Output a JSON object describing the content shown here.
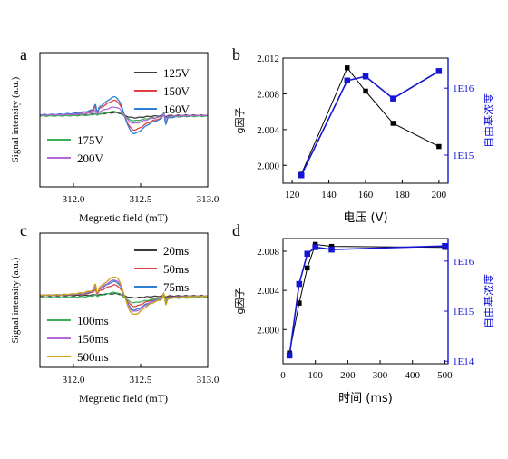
{
  "chart_data": [
    {
      "panel": "a",
      "type": "line",
      "xlabel": "Megnetic field (mT)",
      "ylabel": "Signal intensity (a.u.)",
      "xlim": [
        311.75,
        313.0
      ],
      "xticks": [
        "312.0",
        "312.5",
        "313.0"
      ],
      "xtick_values": [
        312.0,
        312.5,
        313.0
      ],
      "legend_top": [
        "125V",
        "150V",
        "160V"
      ],
      "legend_bottom": [
        "175V",
        "200V"
      ],
      "series": [
        {
          "name": "125V",
          "color": "#3a3a3a",
          "amp": 0.5,
          "base": 127
        },
        {
          "name": "150V",
          "color": "#e0403f",
          "amp": 2.9,
          "base": 127
        },
        {
          "name": "160V",
          "color": "#2f7ed8",
          "amp": 3.6,
          "base": 127
        },
        {
          "name": "175V",
          "color": "#3cae5a",
          "amp": 0.9,
          "base": 128
        },
        {
          "name": "200V",
          "color": "#b26ad6",
          "amp": 1.6,
          "base": 127
        }
      ]
    },
    {
      "panel": "b",
      "type": "line",
      "xlabel": "电压 (V)",
      "ylabel_left": "g因子",
      "ylabel_right": "自由基浓度",
      "xlim": [
        115,
        205
      ],
      "xticks": [
        "120",
        "140",
        "160",
        "180",
        "200"
      ],
      "xtick_values": [
        120,
        140,
        160,
        180,
        200
      ],
      "ylim_left": [
        1.998,
        2.012
      ],
      "yticks_left": [
        "2.000",
        "2.004",
        "2.008",
        "2.012"
      ],
      "ytick_values_left": [
        2.0,
        2.004,
        2.008,
        2.012
      ],
      "y_right_scale": "log",
      "yticks_right": [
        "1E15",
        "1E16"
      ],
      "ytick_values_right": [
        1000000000000000.0,
        1e+16
      ],
      "series": [
        {
          "name": "g因子",
          "axis": "left",
          "color": "#000000",
          "x": [
            125,
            150,
            160,
            175,
            200
          ],
          "y": [
            1.999,
            2.0109,
            2.0083,
            2.0047,
            2.0021
          ]
        },
        {
          "name": "自由基浓度",
          "axis": "right",
          "color": "#1515d6",
          "x": [
            125,
            150,
            160,
            175,
            200
          ],
          "y": [
            500000000000000.0,
            1.3e+16,
            1.5e+16,
            7000000000000000.0,
            1.8e+16
          ]
        }
      ]
    },
    {
      "panel": "c",
      "type": "line",
      "xlabel": "Megnetic field (mT)",
      "ylabel": "Signal intensity (a.u.)",
      "xlim": [
        311.75,
        313.0
      ],
      "xticks": [
        "312.0",
        "312.5",
        "313.0"
      ],
      "xtick_values": [
        312.0,
        312.5,
        313.0
      ],
      "legend_top": [
        "20ms",
        "50ms",
        "75ms"
      ],
      "legend_bottom": [
        "100ms",
        "150ms",
        "500ms"
      ],
      "series": [
        {
          "name": "20ms",
          "color": "#3a3a3a",
          "amp": 0.4,
          "base": 326
        },
        {
          "name": "50ms",
          "color": "#e0403f",
          "amp": 2.1,
          "base": 326
        },
        {
          "name": "75ms",
          "color": "#2f7ed8",
          "amp": 2.8,
          "base": 326
        },
        {
          "name": "100ms",
          "color": "#3cae5a",
          "amp": 1.0,
          "base": 328
        },
        {
          "name": "150ms",
          "color": "#b26ad6",
          "amp": 3.1,
          "base": 326
        },
        {
          "name": "500ms",
          "color": "#c9a215",
          "amp": 3.7,
          "base": 326
        }
      ]
    },
    {
      "panel": "d",
      "type": "line",
      "xlabel": "时间 (ms)",
      "ylabel_left": "g因子",
      "ylabel_right": "自由基浓度",
      "xlim": [
        0,
        510
      ],
      "xticks": [
        "0",
        "100",
        "200",
        "300",
        "400",
        "500"
      ],
      "xtick_values": [
        0,
        100,
        200,
        300,
        400,
        500
      ],
      "ylim_left": [
        1.9965,
        2.0093
      ],
      "yticks_left": [
        "2.000",
        "2.004",
        "2.008"
      ],
      "ytick_values_left": [
        2.0,
        2.004,
        2.008
      ],
      "y_right_scale": "log",
      "yticks_right": [
        "1E14",
        "1E15",
        "1E16"
      ],
      "ytick_values_right": [
        100000000000000.0,
        1000000000000000.0,
        1e+16
      ],
      "series": [
        {
          "name": "g因子",
          "axis": "left",
          "color": "#000000",
          "x": [
            20,
            50,
            75,
            100,
            150,
            500
          ],
          "y": [
            1.9976,
            2.0027,
            2.0063,
            2.0087,
            2.0085,
            2.0084
          ]
        },
        {
          "name": "自由基浓度",
          "axis": "right",
          "color": "#1515d6",
          "x": [
            20,
            50,
            75,
            100,
            150,
            500
          ],
          "y": [
            130000000000000.0,
            3500000000000000.0,
            1.4e+16,
            1.9e+16,
            1.7e+16,
            2e+16
          ]
        }
      ]
    }
  ],
  "colors": {
    "left_axis": "#000000",
    "right_axis": "#1515d6"
  }
}
